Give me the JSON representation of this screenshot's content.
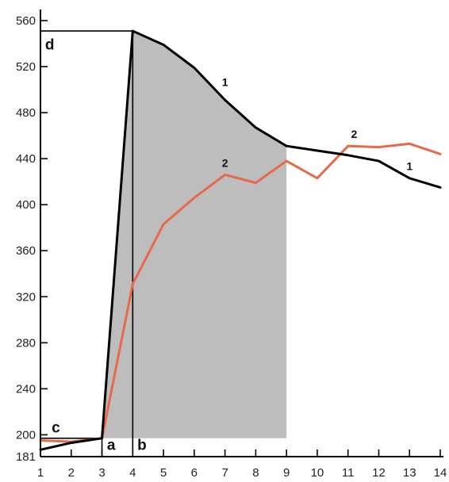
{
  "chart_data": {
    "type": "line",
    "title": "",
    "xlabel": "",
    "ylabel": "",
    "xlim": [
      1,
      14
    ],
    "ylim": [
      181,
      560
    ],
    "x_ticks": [
      1,
      2,
      3,
      4,
      5,
      6,
      7,
      8,
      9,
      10,
      11,
      12,
      13,
      14
    ],
    "y_ticks": [
      181,
      200,
      240,
      280,
      320,
      360,
      400,
      440,
      480,
      520,
      560
    ],
    "grid": false,
    "series": [
      {
        "name": "1",
        "color": "#000000",
        "x": [
          1,
          2,
          3,
          4,
          5,
          6,
          7,
          8,
          9,
          10,
          11,
          12,
          13,
          14
        ],
        "y": [
          187,
          193,
          197,
          551,
          539,
          519,
          491,
          467,
          451,
          447,
          443,
          438,
          423,
          415
        ]
      },
      {
        "name": "2",
        "color": "#e8694a",
        "x": [
          1,
          2,
          3,
          4,
          5,
          6,
          7,
          8,
          9,
          10,
          11,
          12,
          13,
          14
        ],
        "y": [
          195,
          194,
          197,
          331,
          383,
          406,
          426,
          419,
          438,
          423,
          451,
          450,
          453,
          444
        ]
      }
    ],
    "shaded_region": {
      "color": "#bdbdbd",
      "x_from": 3,
      "x_to": 9,
      "y_base": 197
    },
    "annotations": [
      {
        "text": "a",
        "x": 3.3,
        "y": 187
      },
      {
        "text": "b",
        "x": 4.3,
        "y": 187
      },
      {
        "text": "c",
        "x": 1.5,
        "y": 202
      },
      {
        "text": "d",
        "x": 1.3,
        "y": 535
      }
    ],
    "series_labels": [
      {
        "text": "1",
        "x": 7.0,
        "y": 503
      },
      {
        "text": "2",
        "x": 7.0,
        "y": 433
      },
      {
        "text": "2",
        "x": 11.2,
        "y": 458
      },
      {
        "text": "1",
        "x": 13.0,
        "y": 430
      }
    ],
    "reference_lines": {
      "vertical_a_x": 3,
      "vertical_b_x": 4,
      "horizontal_c_y": 197,
      "horizontal_d_y": 551
    }
  }
}
